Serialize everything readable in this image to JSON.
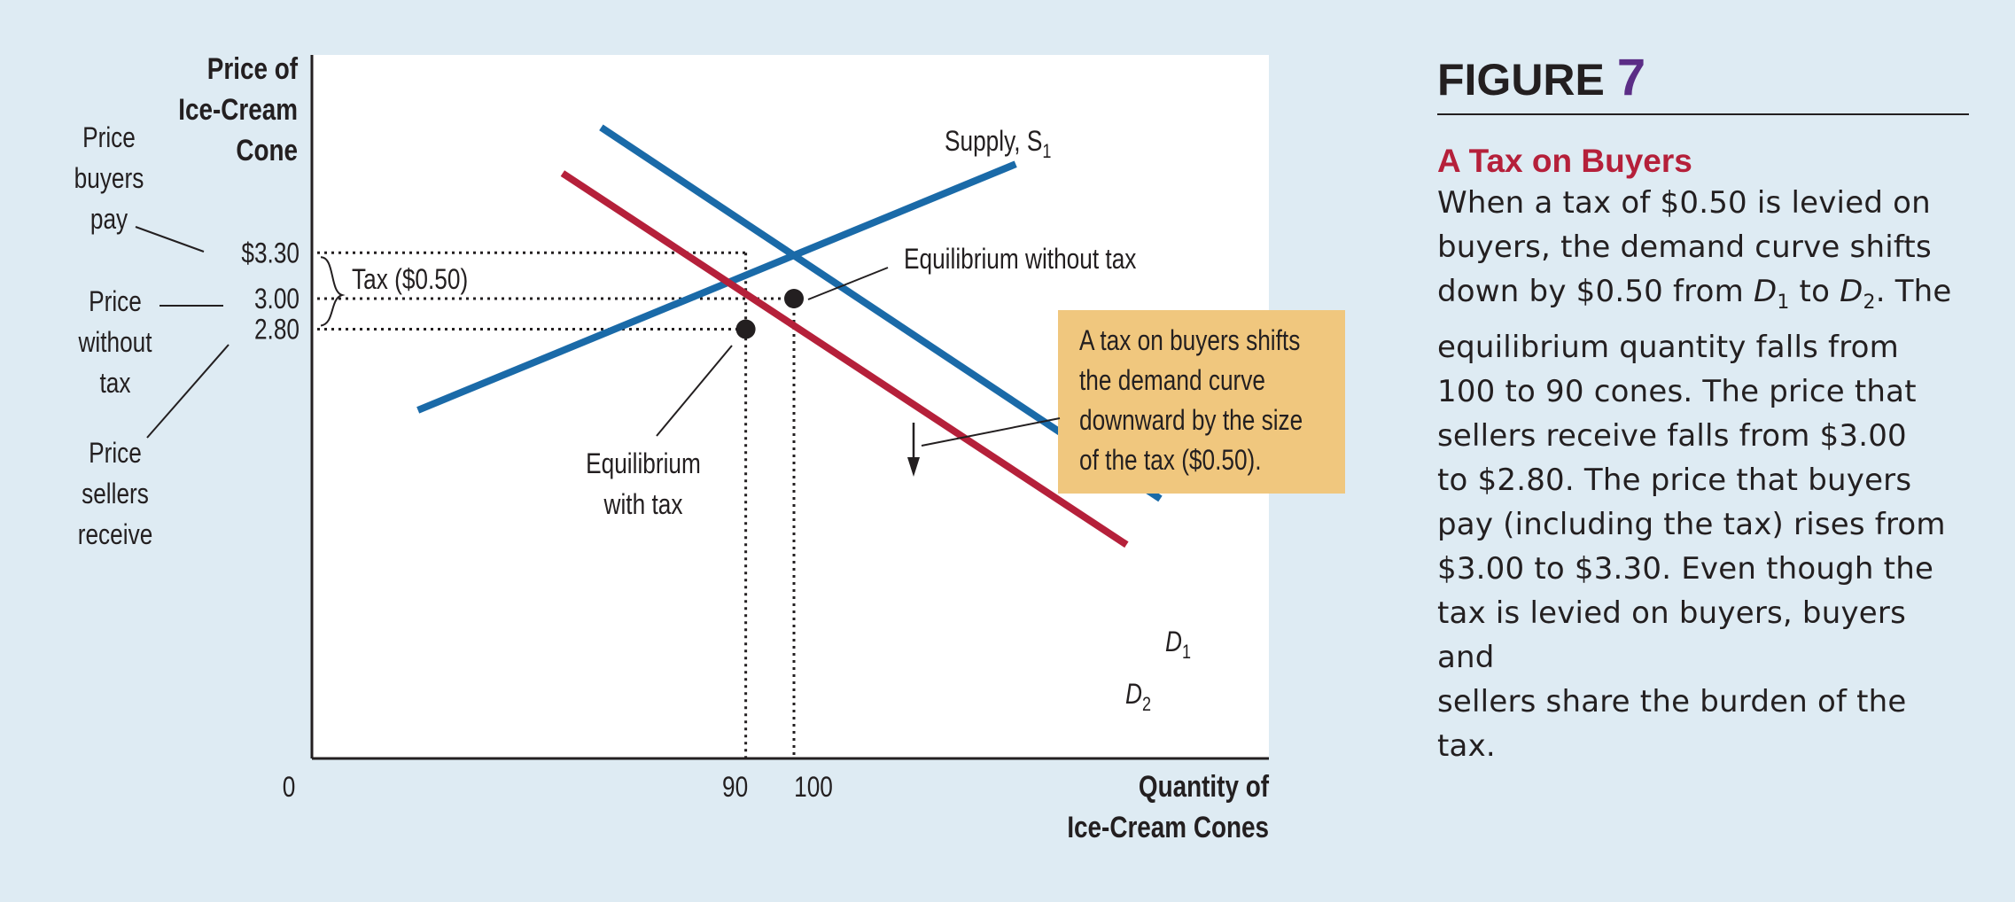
{
  "chart_data": {
    "type": "line",
    "y_axis_label": [
      "Price of",
      "Ice-Cream",
      "Cone"
    ],
    "x_axis_label": [
      "Quantity of",
      "Ice-Cream Cones"
    ],
    "origin_label": "0",
    "y_ticks": [
      {
        "value": 3.3,
        "label": "$3.30"
      },
      {
        "value": 3.0,
        "label": "3.00"
      },
      {
        "value": 2.8,
        "label": "2.80"
      }
    ],
    "x_ticks": [
      {
        "value": 90,
        "label": "90"
      },
      {
        "value": 100,
        "label": "100"
      }
    ],
    "series": [
      {
        "name": "Supply, S",
        "sub": "1",
        "color": "#1a6aa8",
        "points": [
          [
            22,
            2.27
          ],
          [
            146,
            3.88
          ]
        ]
      },
      {
        "name": "D",
        "sub": "1",
        "color": "#1a6aa8",
        "points": [
          [
            60,
            4.12
          ],
          [
            176,
            1.69
          ]
        ]
      },
      {
        "name": "D",
        "sub": "2",
        "color": "#b5203a",
        "points": [
          [
            52,
            3.82
          ],
          [
            169,
            1.39
          ]
        ]
      }
    ],
    "equilibria": [
      {
        "q": 100,
        "p": 3.0,
        "label": [
          "Equilibrium without tax"
        ]
      },
      {
        "q": 90,
        "p": 2.8,
        "label": [
          "Equilibrium",
          "with tax"
        ]
      }
    ],
    "tax_label": "Tax ($0.50)",
    "side_labels": [
      {
        "lines": [
          "Price",
          "buyers",
          "pay"
        ]
      },
      {
        "lines": [
          "Price",
          "without",
          "tax"
        ]
      },
      {
        "lines": [
          "Price",
          "sellers",
          "receive"
        ]
      }
    ],
    "callout": {
      "lines": [
        "A tax on buyers shifts",
        "the demand curve",
        "downward by the size",
        "of the tax ($0.50)."
      ],
      "fill": "#f0c77e"
    }
  },
  "panel": {
    "figure_word": "FIGURE",
    "figure_number": "7",
    "title": "A Tax on Buyers",
    "body_lines": [
      [
        "When a tax of $0.50 is levied on"
      ],
      [
        "buyers, the demand curve shifts"
      ],
      [
        "down by $0.50 from ",
        {
          "i": "D",
          "sub": "1"
        },
        " to ",
        {
          "i": "D",
          "sub": "2"
        },
        ". The"
      ],
      [
        "equilibrium quantity falls from"
      ],
      [
        "100 to 90 cones. The price that"
      ],
      [
        "sellers receive falls from $3.00"
      ],
      [
        "to $2.80. The price that buyers"
      ],
      [
        "pay (including the tax) rises from"
      ],
      [
        "$3.00 to $3.30. Even though the"
      ],
      [
        "tax is levied on buyers, buyers and"
      ],
      [
        "sellers share the burden of the tax."
      ]
    ]
  }
}
